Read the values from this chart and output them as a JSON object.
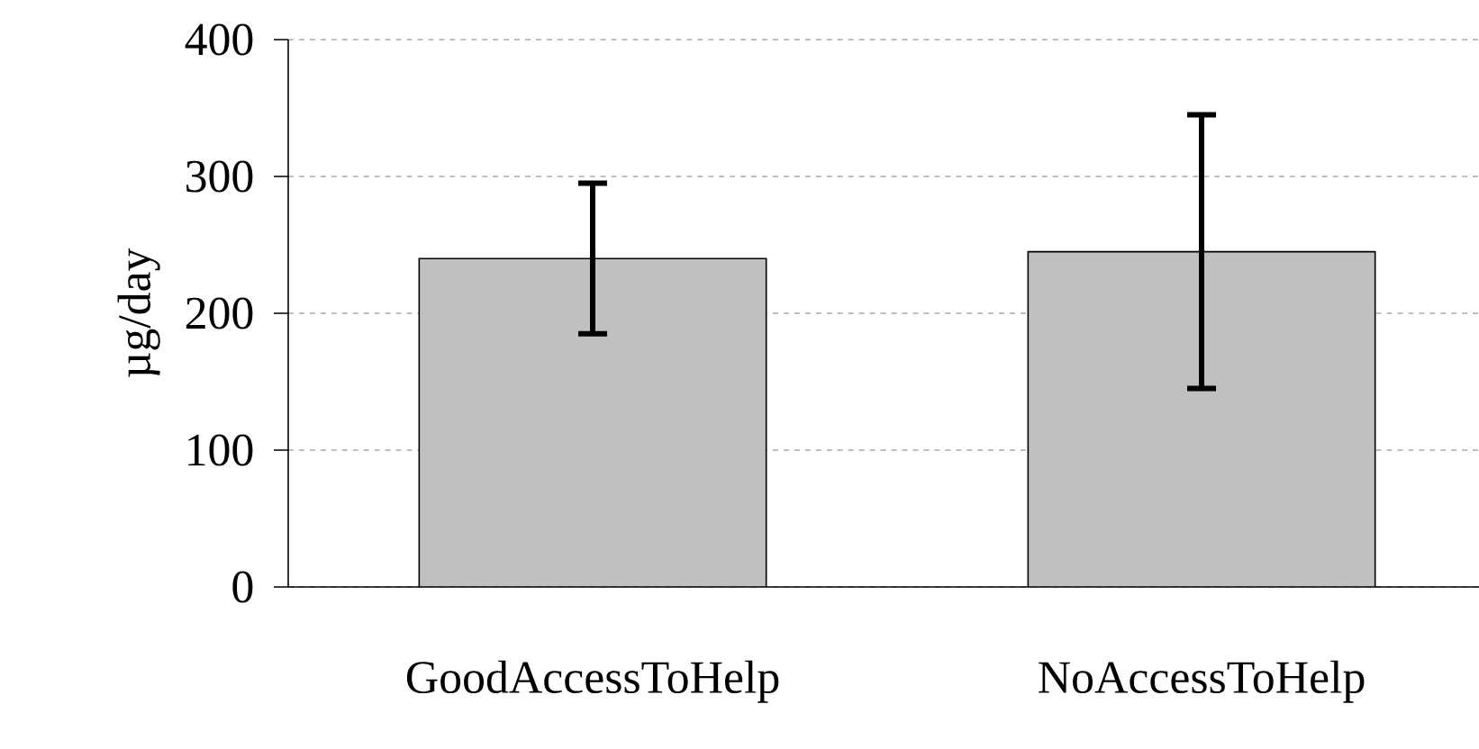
{
  "chart_data": {
    "type": "bar",
    "ylabel": "µg/day",
    "categories": [
      "GoodAccessToHelp",
      "NoAccessToHelp"
    ],
    "values": [
      240,
      245
    ],
    "errors": [
      55,
      100
    ],
    "color": "#c0c0c0",
    "ylim": [
      0,
      400
    ],
    "yticks": [
      0,
      100,
      200,
      300,
      400
    ],
    "grid": "y"
  }
}
